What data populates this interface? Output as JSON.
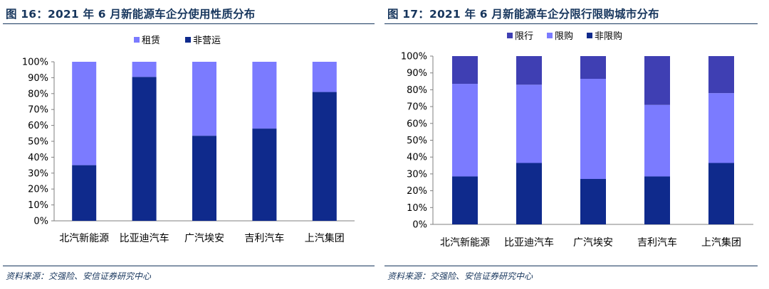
{
  "left": {
    "title": "图 16：2021 年 6 月新能源车企分使用性质分布",
    "source": "资料来源：交强险、安信证券研究中心"
  },
  "right": {
    "title": "图 17：2021 年 6 月新能源车企分限行限购城市分布",
    "source": "资料来源：交强险、安信证券研究中心"
  },
  "chart_data": [
    {
      "type": "bar",
      "stacked": true,
      "categories": [
        "北汽新能源",
        "比亚迪汽车",
        "广汽埃安",
        "吉利汽车",
        "上汽集团"
      ],
      "series": [
        {
          "name": "非营运",
          "values": [
            35,
            90.5,
            53.5,
            58,
            81
          ],
          "color": "#0f2a8c"
        },
        {
          "name": "租赁",
          "values": [
            65,
            9.5,
            46.5,
            42,
            19
          ],
          "color": "#7b7bff"
        }
      ],
      "legend_order": [
        "租赁",
        "非营运"
      ],
      "legend_position": "top",
      "ylim": [
        0,
        100
      ],
      "yticks": [
        "0%",
        "10%",
        "20%",
        "30%",
        "40%",
        "50%",
        "60%",
        "70%",
        "80%",
        "90%",
        "100%"
      ],
      "grid": false
    },
    {
      "type": "bar",
      "stacked": true,
      "categories": [
        "北汽新能源",
        "比亚迪汽车",
        "广汽埃安",
        "吉利汽车",
        "上汽集团"
      ],
      "series": [
        {
          "name": "非限购",
          "values": [
            28.5,
            36.5,
            27,
            28.5,
            36.5
          ],
          "color": "#0f2a8c"
        },
        {
          "name": "限购",
          "values": [
            55,
            46.5,
            59.5,
            42.5,
            41.5
          ],
          "color": "#7b7bff"
        },
        {
          "name": "限行",
          "values": [
            16.5,
            17,
            13.5,
            29,
            22
          ],
          "color": "#3f3fb3"
        }
      ],
      "legend_order": [
        "限行",
        "限购",
        "非限购"
      ],
      "legend_position": "top",
      "ylim": [
        0,
        100
      ],
      "yticks": [
        "0%",
        "10%",
        "20%",
        "30%",
        "40%",
        "50%",
        "60%",
        "70%",
        "80%",
        "90%",
        "100%"
      ],
      "grid": false
    }
  ]
}
